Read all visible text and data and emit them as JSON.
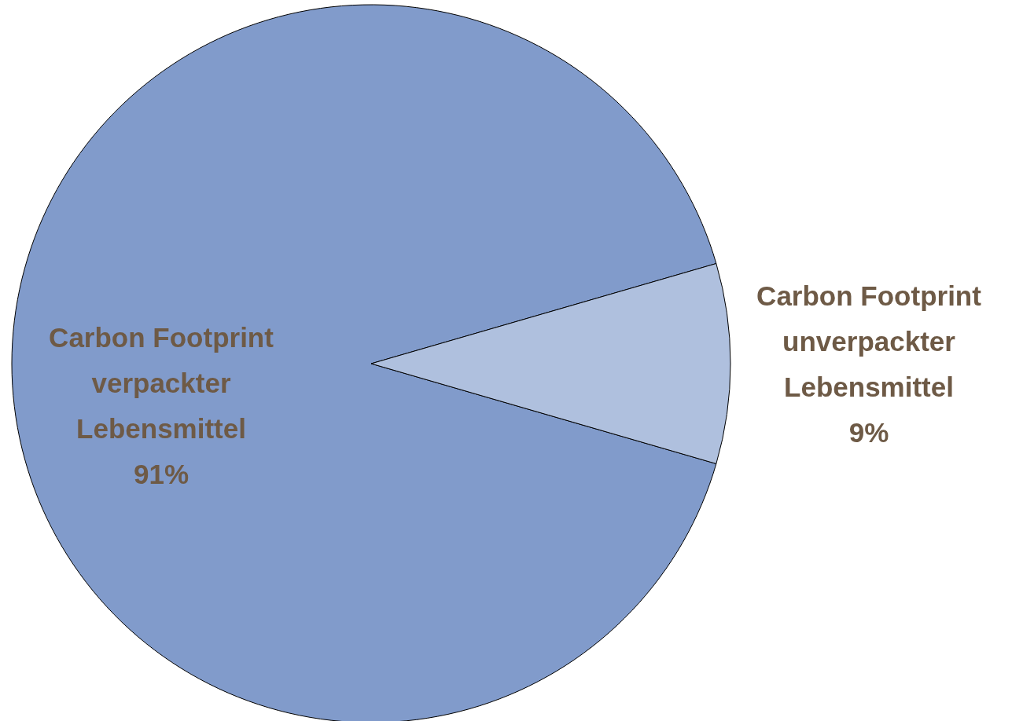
{
  "chart_data": {
    "type": "pie",
    "categories": [
      "Carbon Footprint\nverpackter\nLebensmittel",
      "Carbon Footprint\nunverpackter\nLebensmittel"
    ],
    "values": [
      91,
      9
    ],
    "colors": [
      "#819bcb",
      "#afc0de"
    ],
    "value_labels": [
      "91%",
      "9%"
    ]
  }
}
